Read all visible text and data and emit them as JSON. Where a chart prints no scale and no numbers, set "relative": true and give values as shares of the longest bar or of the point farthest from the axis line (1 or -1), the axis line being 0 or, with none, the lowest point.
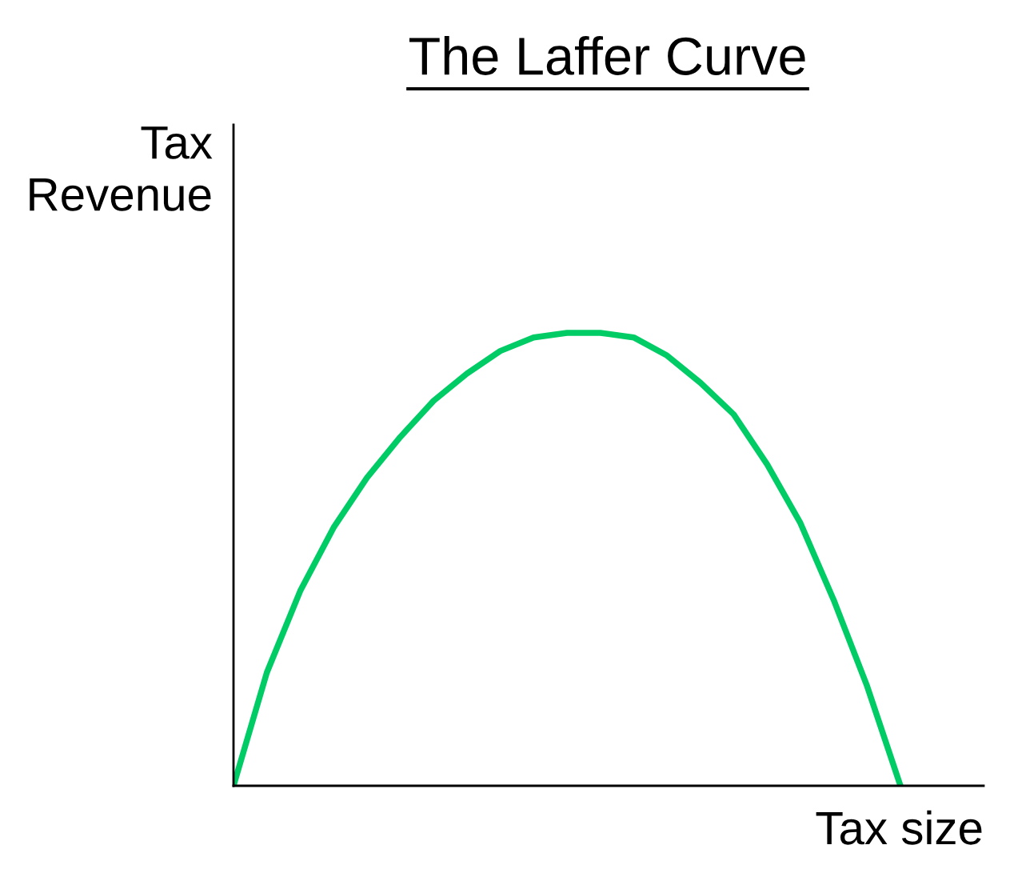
{
  "chart_data": {
    "type": "line",
    "title": "The Laffer Curve",
    "xlabel": "Tax size",
    "ylabel": "Tax\nRevenue",
    "relative": true,
    "categories": [
      null,
      null,
      null,
      null,
      null,
      null,
      null,
      null,
      null,
      null,
      null,
      null,
      null,
      null,
      null,
      null,
      null,
      null,
      null,
      null,
      null
    ],
    "series": [
      {
        "color": "#00cc66",
        "values": [
          0,
          0.25,
          0.43,
          0.57,
          0.68,
          0.77,
          0.85,
          0.91,
          0.96,
          0.99,
          1.0,
          1.0,
          0.99,
          0.95,
          0.89,
          0.82,
          0.71,
          0.58,
          0.41,
          0.22,
          0
        ]
      }
    ]
  }
}
